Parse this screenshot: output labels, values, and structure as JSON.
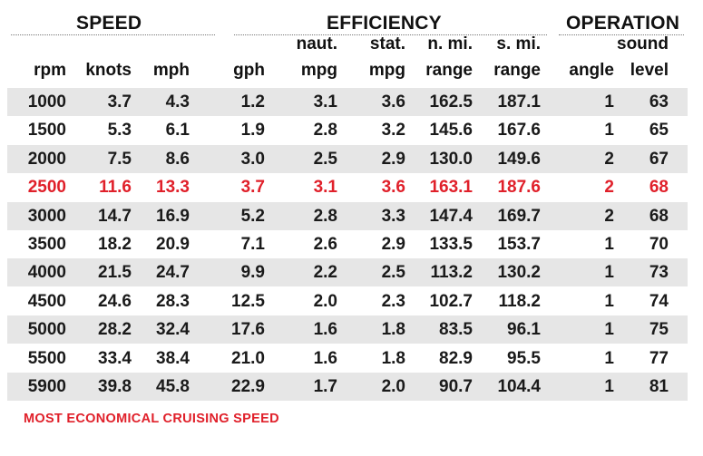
{
  "groups": {
    "speed": "SPEED",
    "efficiency": "EFFICIENCY",
    "operation": "OPERATION"
  },
  "columns": {
    "rpm": [
      "",
      "rpm"
    ],
    "knots": [
      "",
      "knots"
    ],
    "mph": [
      "",
      "mph"
    ],
    "gph": [
      "",
      "gph"
    ],
    "naut_mpg": [
      "naut.",
      "mpg"
    ],
    "stat_mpg": [
      "stat.",
      "mpg"
    ],
    "n_range": [
      "n. mi.",
      "range"
    ],
    "s_range": [
      "s. mi.",
      "range"
    ],
    "angle": [
      "",
      "angle"
    ],
    "sound": [
      "sound",
      "level"
    ]
  },
  "rows": [
    [
      "1000",
      "3.7",
      "4.3",
      "1.2",
      "3.1",
      "3.6",
      "162.5",
      "187.1",
      "1",
      "63"
    ],
    [
      "1500",
      "5.3",
      "6.1",
      "1.9",
      "2.8",
      "3.2",
      "145.6",
      "167.6",
      "1",
      "65"
    ],
    [
      "2000",
      "7.5",
      "8.6",
      "3.0",
      "2.5",
      "2.9",
      "130.0",
      "149.6",
      "2",
      "67"
    ],
    [
      "2500",
      "11.6",
      "13.3",
      "3.7",
      "3.1",
      "3.6",
      "163.1",
      "187.6",
      "2",
      "68"
    ],
    [
      "3000",
      "14.7",
      "16.9",
      "5.2",
      "2.8",
      "3.3",
      "147.4",
      "169.7",
      "2",
      "68"
    ],
    [
      "3500",
      "18.2",
      "20.9",
      "7.1",
      "2.6",
      "2.9",
      "133.5",
      "153.7",
      "1",
      "70"
    ],
    [
      "4000",
      "21.5",
      "24.7",
      "9.9",
      "2.2",
      "2.5",
      "113.2",
      "130.2",
      "1",
      "73"
    ],
    [
      "4500",
      "24.6",
      "28.3",
      "12.5",
      "2.0",
      "2.3",
      "102.7",
      "118.2",
      "1",
      "74"
    ],
    [
      "5000",
      "28.2",
      "32.4",
      "17.6",
      "1.6",
      "1.8",
      "83.5",
      "96.1",
      "1",
      "75"
    ],
    [
      "5500",
      "33.4",
      "38.4",
      "21.0",
      "1.6",
      "1.8",
      "82.9",
      "95.5",
      "1",
      "77"
    ],
    [
      "5900",
      "39.8",
      "45.8",
      "22.9",
      "1.7",
      "2.0",
      "90.7",
      "104.4",
      "1",
      "81"
    ]
  ],
  "highlight_row": 3,
  "highlight_color": "#e0202a",
  "shade_color": "#e6e6e6",
  "footnote": "MOST ECONOMICAL CRUISING SPEED"
}
